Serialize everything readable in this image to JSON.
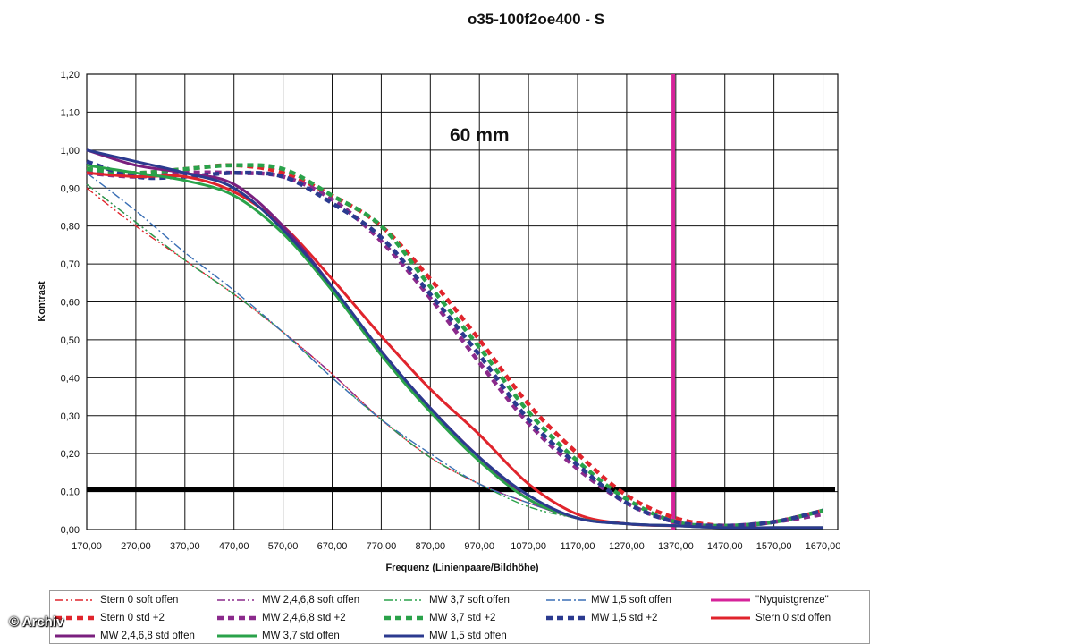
{
  "watermark": "© Archiv",
  "chart_data": {
    "type": "line",
    "title": "o35-100f2oe400 - S",
    "annotation": "60 mm",
    "xlabel": "Frequenz (Linienpaare/Bildhöhe)",
    "ylabel": "Kontrast",
    "xlim": [
      170,
      1700
    ],
    "ylim": [
      0,
      1.2
    ],
    "x_ticks": [
      "170,00",
      "270,00",
      "370,00",
      "470,00",
      "570,00",
      "670,00",
      "770,00",
      "870,00",
      "970,00",
      "1070,00",
      "1170,00",
      "1270,00",
      "1370,00",
      "1470,00",
      "1570,00",
      "1670,00"
    ],
    "y_ticks": [
      "0,00",
      "0,10",
      "0,20",
      "0,30",
      "0,40",
      "0,50",
      "0,60",
      "0,70",
      "0,80",
      "0,90",
      "1,00",
      "1,10",
      "1,20"
    ],
    "grid": true,
    "legend_position": "bottom",
    "reference_lines": [
      {
        "kind": "vertical",
        "x": 1365,
        "color": "#d6239a",
        "series": "\"Nyquistgrenze\""
      },
      {
        "kind": "horizontal",
        "y": 0.105,
        "color": "#000000"
      }
    ],
    "series": [
      {
        "name": "Stern 0 soft offen",
        "color": "#e0242c",
        "style": "dashdotdot",
        "x": [
          170,
          270,
          370,
          470,
          570,
          670,
          770,
          870,
          970,
          1070,
          1170,
          1270,
          1370
        ],
        "y": [
          0.9,
          0.8,
          0.71,
          0.62,
          0.52,
          0.41,
          0.29,
          0.19,
          0.12,
          0.07,
          0.03,
          0.015,
          0.01
        ]
      },
      {
        "name": "MW 2,4,6,8 soft offen",
        "color": "#8b2a8c",
        "style": "dashdotdot",
        "x": [
          170,
          270,
          370,
          470,
          570,
          670,
          770,
          870,
          970,
          1070,
          1170,
          1270,
          1370
        ],
        "y": [
          0.91,
          0.81,
          0.71,
          0.62,
          0.52,
          0.41,
          0.29,
          0.19,
          0.12,
          0.07,
          0.03,
          0.015,
          0.01
        ]
      },
      {
        "name": "MW 3,7 soft offen",
        "color": "#2aa24a",
        "style": "dashdotdot",
        "x": [
          170,
          270,
          370,
          470,
          570,
          670,
          770,
          870,
          970,
          1070,
          1170,
          1270,
          1370
        ],
        "y": [
          0.91,
          0.81,
          0.71,
          0.62,
          0.52,
          0.4,
          0.29,
          0.19,
          0.12,
          0.06,
          0.03,
          0.015,
          0.01
        ]
      },
      {
        "name": "MW 1,5 soft offen",
        "color": "#3a6fb5",
        "style": "dashdot",
        "x": [
          170,
          270,
          370,
          470,
          570,
          670,
          770,
          870,
          970,
          1070,
          1170,
          1270,
          1370
        ],
        "y": [
          0.94,
          0.84,
          0.73,
          0.63,
          0.52,
          0.4,
          0.29,
          0.2,
          0.12,
          0.07,
          0.03,
          0.015,
          0.01
        ]
      },
      {
        "name": "\"Nyquistgrenze\"",
        "color": "#d6239a",
        "style": "solid",
        "x": [
          1365,
          1365
        ],
        "y": [
          0,
          1.2
        ]
      },
      {
        "name": "Stern 0 std +2",
        "color": "#e0242c",
        "style": "bigdash",
        "x": [
          170,
          270,
          370,
          470,
          570,
          670,
          770,
          870,
          970,
          1070,
          1170,
          1270,
          1370,
          1470,
          1570,
          1670
        ],
        "y": [
          0.95,
          0.94,
          0.95,
          0.96,
          0.94,
          0.88,
          0.8,
          0.66,
          0.5,
          0.33,
          0.2,
          0.09,
          0.03,
          0.01,
          0.02,
          0.05
        ]
      },
      {
        "name": "MW 2,4,6,8 std +2",
        "color": "#8b2a8c",
        "style": "bigdash",
        "x": [
          170,
          270,
          370,
          470,
          570,
          670,
          770,
          870,
          970,
          1070,
          1170,
          1270,
          1370,
          1470,
          1570,
          1670
        ],
        "y": [
          0.94,
          0.93,
          0.94,
          0.94,
          0.93,
          0.87,
          0.76,
          0.61,
          0.44,
          0.28,
          0.16,
          0.07,
          0.02,
          0.01,
          0.02,
          0.04
        ]
      },
      {
        "name": "MW 3,7 std +2",
        "color": "#2aa24a",
        "style": "bigdash",
        "x": [
          170,
          270,
          370,
          470,
          570,
          670,
          770,
          870,
          970,
          1070,
          1170,
          1270,
          1370,
          1470,
          1570,
          1670
        ],
        "y": [
          0.95,
          0.94,
          0.95,
          0.96,
          0.95,
          0.88,
          0.8,
          0.64,
          0.48,
          0.31,
          0.18,
          0.08,
          0.02,
          0.01,
          0.02,
          0.05
        ]
      },
      {
        "name": "MW 1,5 std +2",
        "color": "#2b3a8f",
        "style": "bigdash",
        "x": [
          170,
          270,
          370,
          470,
          570,
          670,
          770,
          870,
          970,
          1070,
          1170,
          1270,
          1370,
          1470,
          1570,
          1670
        ],
        "y": [
          0.97,
          0.93,
          0.93,
          0.94,
          0.93,
          0.86,
          0.77,
          0.62,
          0.46,
          0.29,
          0.17,
          0.07,
          0.02,
          0.01,
          0.02,
          0.05
        ]
      },
      {
        "name": "Stern 0 std offen",
        "color": "#e0242c",
        "style": "solid",
        "x": [
          170,
          270,
          370,
          470,
          570,
          670,
          770,
          870,
          970,
          1070,
          1170,
          1270,
          1370
        ],
        "y": [
          0.94,
          0.93,
          0.93,
          0.89,
          0.8,
          0.66,
          0.51,
          0.37,
          0.25,
          0.12,
          0.04,
          0.015,
          0.01
        ]
      },
      {
        "name": "MW 2,4,6,8 std offen",
        "color": "#7a1f7e",
        "style": "solid",
        "x": [
          170,
          270,
          370,
          470,
          570,
          670,
          770,
          870,
          970,
          1070,
          1170,
          1270,
          1370,
          1470,
          1570,
          1670
        ],
        "y": [
          1.0,
          0.96,
          0.94,
          0.91,
          0.8,
          0.64,
          0.47,
          0.32,
          0.19,
          0.08,
          0.03,
          0.015,
          0.01,
          0.005,
          0.005,
          0.005
        ]
      },
      {
        "name": "MW 3,7 std offen",
        "color": "#2aa24a",
        "style": "solid",
        "x": [
          170,
          270,
          370,
          470,
          570,
          670,
          770,
          870,
          970,
          1070,
          1170,
          1270,
          1370,
          1470,
          1570,
          1670
        ],
        "y": [
          0.96,
          0.94,
          0.92,
          0.88,
          0.78,
          0.63,
          0.46,
          0.31,
          0.18,
          0.08,
          0.03,
          0.015,
          0.01,
          0.005,
          0.005,
          0.005
        ]
      },
      {
        "name": "MW 1,5 std offen",
        "color": "#2b3a8f",
        "style": "solid",
        "x": [
          170,
          270,
          370,
          470,
          570,
          670,
          770,
          870,
          970,
          1070,
          1170,
          1270,
          1370,
          1470,
          1570,
          1670
        ],
        "y": [
          1.0,
          0.97,
          0.94,
          0.9,
          0.79,
          0.64,
          0.47,
          0.32,
          0.19,
          0.09,
          0.03,
          0.015,
          0.01,
          0.005,
          0.005,
          0.005
        ]
      }
    ]
  }
}
